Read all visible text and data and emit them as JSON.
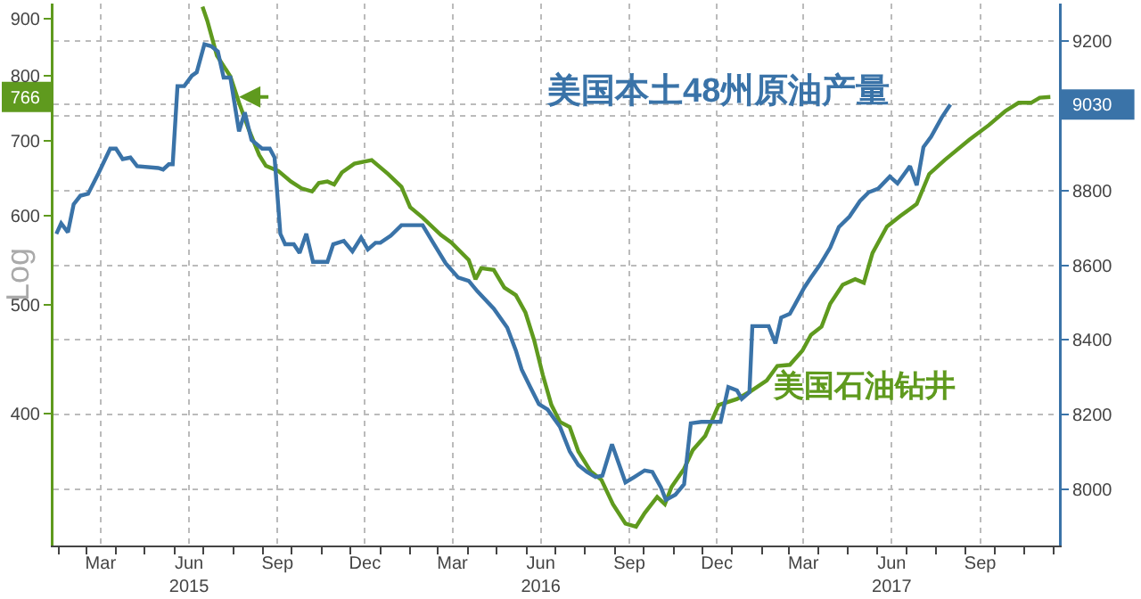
{
  "chart_data": {
    "type": "line",
    "ylabel": "Log",
    "log": "y",
    "xlim": [
      "2015-01-26",
      "2017-12-07"
    ],
    "xticks": [
      {
        "value": "2015-03-16",
        "label": "Mar"
      },
      {
        "value": "2015-06-16",
        "label": "Jun\n2015"
      },
      {
        "value": "2015-09-16",
        "label": "Sep"
      },
      {
        "value": "2015-12-16",
        "label": "Dec"
      },
      {
        "value": "2016-03-16",
        "label": "Mar"
      },
      {
        "value": "2016-06-16",
        "label": "Jun\n2016"
      },
      {
        "value": "2016-09-16",
        "label": "Sep"
      },
      {
        "value": "2016-12-16",
        "label": "Dec"
      },
      {
        "value": "2017-03-16",
        "label": "Mar"
      },
      {
        "value": "2017-06-16",
        "label": "Jun\n2017"
      },
      {
        "value": "2017-09-16",
        "label": "Sep"
      }
    ],
    "ylim": [
      305,
      928
    ],
    "yticks": [
      400,
      500,
      600,
      700,
      766,
      800,
      900
    ],
    "y2lim": [
      7850,
      9300
    ],
    "y2ticks": [
      8000,
      8200,
      8400,
      8600,
      8800,
      {
        "value": 9000,
        "label": null
      },
      9030,
      9200
    ],
    "grid": true,
    "legend": false,
    "marker": "none",
    "line_style": "solid",
    "series": [
      {
        "name": "美国本土48州原油产量",
        "color": "#3a73a8",
        "axis": "y2",
        "x": [
          "2015-01-29",
          "2015-02-03",
          "2015-02-10",
          "2015-02-16",
          "2015-02-23",
          "2015-03-03",
          "2015-03-14",
          "2015-03-26",
          "2015-04-01",
          "2015-04-08",
          "2015-04-16",
          "2015-04-23",
          "2015-05-15",
          "2015-05-20",
          "2015-05-26",
          "2015-05-30",
          "2015-06-04",
          "2015-06-11",
          "2015-06-19",
          "2015-06-24",
          "2015-07-02",
          "2015-07-09",
          "2015-07-16",
          "2015-07-22",
          "2015-07-29",
          "2015-08-07",
          "2015-08-13",
          "2015-08-20",
          "2015-08-31",
          "2015-09-08",
          "2015-09-13",
          "2015-09-19",
          "2015-09-24",
          "2015-10-03",
          "2015-10-09",
          "2015-10-16",
          "2015-10-23",
          "2015-11-07",
          "2015-11-13",
          "2015-11-24",
          "2015-12-03",
          "2015-12-12",
          "2015-12-19",
          "2015-12-27",
          "2016-01-01",
          "2016-01-12",
          "2016-01-23",
          "2016-02-14",
          "2016-02-25",
          "2016-03-09",
          "2016-03-22",
          "2016-04-02",
          "2016-04-11",
          "2016-04-28",
          "2016-05-12",
          "2016-05-21",
          "2016-05-27",
          "2016-06-05",
          "2016-06-14",
          "2016-06-23",
          "2016-07-06",
          "2016-07-16",
          "2016-07-25",
          "2016-08-03",
          "2016-08-12",
          "2016-08-19",
          "2016-08-29",
          "2016-09-12",
          "2016-09-21",
          "2016-10-02",
          "2016-10-10",
          "2016-10-19",
          "2016-10-24",
          "2016-11-03",
          "2016-11-12",
          "2016-11-19",
          "2016-11-30",
          "2016-12-20",
          "2016-12-28",
          "2017-01-06",
          "2017-01-11",
          "2017-01-19",
          "2017-01-22",
          "2017-01-30",
          "2017-02-08",
          "2017-02-15",
          "2017-02-21",
          "2017-03-02",
          "2017-03-07",
          "2017-03-17",
          "2017-03-24",
          "2017-04-02",
          "2017-04-13",
          "2017-04-22",
          "2017-05-03",
          "2017-05-14",
          "2017-05-23",
          "2017-06-02",
          "2017-06-14",
          "2017-06-22",
          "2017-07-05",
          "2017-07-12",
          "2017-07-19",
          "2017-07-27",
          "2017-08-07",
          "2017-08-16"
        ],
        "values": [
          8684,
          8712,
          8688,
          8763,
          8786,
          8791,
          8847,
          8912,
          8912,
          8884,
          8888,
          8865,
          8860,
          8856,
          8870,
          8870,
          9079,
          9079,
          9107,
          9116,
          9191,
          9186,
          9172,
          9102,
          9102,
          8958,
          9009,
          8935,
          8912,
          8912,
          8888,
          8684,
          8656,
          8656,
          8633,
          8684,
          8609,
          8609,
          8656,
          8665,
          8637,
          8674,
          8642,
          8660,
          8660,
          8679,
          8707,
          8707,
          8660,
          8605,
          8567,
          8558,
          8530,
          8484,
          8433,
          8372,
          8321,
          8274,
          8228,
          8214,
          8167,
          8102,
          8065,
          8047,
          8033,
          8037,
          8121,
          8019,
          8033,
          8051,
          8047,
          8005,
          7972,
          7986,
          8014,
          8177,
          8181,
          8181,
          8274,
          8265,
          8242,
          8260,
          8437,
          8437,
          8437,
          8391,
          8460,
          8470,
          8493,
          8540,
          8567,
          8600,
          8647,
          8702,
          8730,
          8772,
          8795,
          8805,
          8837,
          8819,
          8865,
          8814,
          8916,
          8944,
          8995,
          9030
        ]
      },
      {
        "name": "美国石油钻井",
        "color": "#5f9a1e",
        "axis": "y",
        "x": [
          "2015-06-30",
          "2015-07-05",
          "2015-07-15",
          "2015-07-29",
          "2015-08-07",
          "2015-08-17",
          "2015-08-28",
          "2015-09-04",
          "2015-09-17",
          "2015-09-30",
          "2015-10-11",
          "2015-10-22",
          "2015-10-29",
          "2015-11-07",
          "2015-11-14",
          "2015-11-22",
          "2015-12-05",
          "2015-12-23",
          "2016-01-09",
          "2016-01-23",
          "2016-02-01",
          "2016-02-14",
          "2016-03-04",
          "2016-03-15",
          "2016-04-02",
          "2016-04-09",
          "2016-04-15",
          "2016-04-28",
          "2016-05-09",
          "2016-05-21",
          "2016-05-31",
          "2016-06-09",
          "2016-06-18",
          "2016-06-27",
          "2016-07-06",
          "2016-07-16",
          "2016-07-25",
          "2016-08-07",
          "2016-08-18",
          "2016-08-30",
          "2016-09-12",
          "2016-09-23",
          "2016-10-02",
          "2016-10-15",
          "2016-10-23",
          "2016-10-30",
          "2016-11-12",
          "2016-11-21",
          "2016-12-04",
          "2016-12-18",
          "2017-01-06",
          "2017-01-19",
          "2017-02-06",
          "2017-02-17",
          "2017-03-02",
          "2017-03-15",
          "2017-03-24",
          "2017-04-04",
          "2017-04-13",
          "2017-04-26",
          "2017-05-09",
          "2017-05-18",
          "2017-05-27",
          "2017-06-11",
          "2017-06-25",
          "2017-07-12",
          "2017-07-25",
          "2017-08-10",
          "2017-09-05",
          "2017-09-25",
          "2017-10-12",
          "2017-10-26",
          "2017-11-08",
          "2017-11-17",
          "2017-11-28"
        ],
        "values": [
          922,
          896,
          834,
          799,
          757,
          717,
          680,
          665,
          658,
          644,
          635,
          631,
          642,
          644,
          640,
          656,
          668,
          673,
          654,
          637,
          611,
          598,
          577,
          568,
          548,
          527,
          539,
          537,
          518,
          510,
          492,
          465,
          433,
          407,
          393,
          389,
          370,
          355,
          349,
          332,
          319,
          317,
          326,
          337,
          332,
          344,
          357,
          371,
          382,
          407,
          412,
          418,
          428,
          441,
          442,
          455,
          470,
          478,
          501,
          521,
          527,
          523,
          556,
          587,
          600,
          615,
          654,
          673,
          702,
          723,
          744,
          757,
          757,
          765,
          766
        ]
      }
    ]
  }
}
